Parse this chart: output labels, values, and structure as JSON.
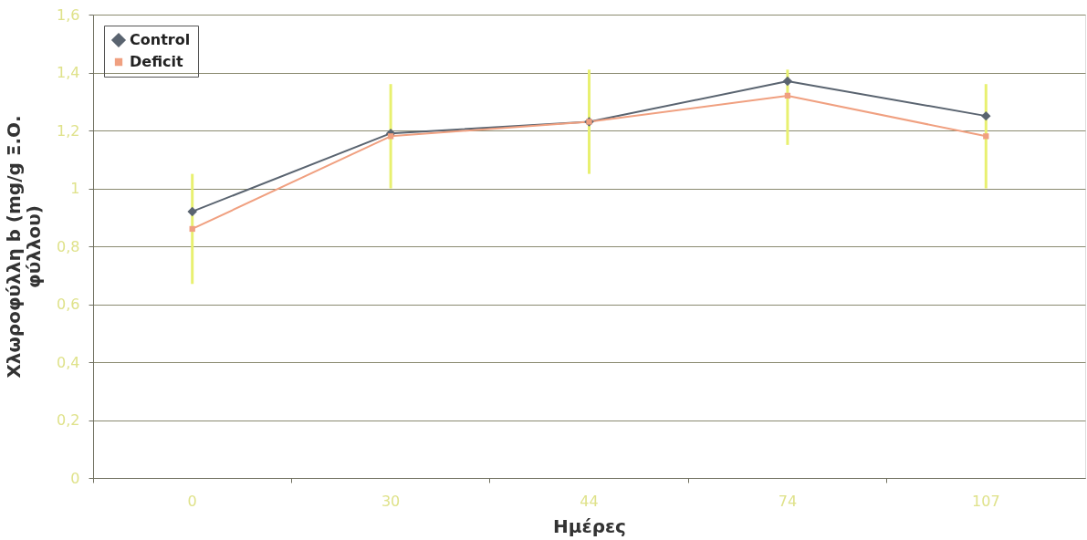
{
  "chart_data": {
    "type": "line",
    "xlabel": "Ημέρες",
    "ylabel": "Χλωροφύλλη b (mg/g Ξ.Ο. φύλλου)",
    "categories": [
      "0",
      "30",
      "44",
      "74",
      "107"
    ],
    "series": [
      {
        "name": "Control",
        "color": "#5a6470",
        "marker": "diamond",
        "values": [
          0.92,
          1.19,
          1.23,
          1.37,
          1.25
        ]
      },
      {
        "name": "Deficit",
        "color": "#f0a080",
        "marker": "square",
        "values": [
          0.86,
          1.18,
          1.23,
          1.32,
          1.18
        ],
        "errors": [
          [
            0.67,
            1.05
          ],
          [
            1.0,
            1.36
          ],
          [
            1.05,
            1.41
          ],
          [
            1.15,
            1.41
          ],
          [
            1.0,
            1.36
          ]
        ]
      }
    ],
    "ylim": [
      0,
      1.6
    ],
    "yticks": [
      0,
      {
        "value": 0.2,
        "label": "0,2"
      },
      {
        "value": 0.4,
        "label": "0,4"
      },
      {
        "value": 0.6,
        "label": "0,6"
      },
      {
        "value": 0.8,
        "label": "0,8"
      },
      1,
      {
        "value": 1.2,
        "label": "1,2"
      },
      {
        "value": 1.4,
        "label": "1,4"
      },
      {
        "value": 1.6,
        "label": "1,6"
      }
    ],
    "grid": "y",
    "legend": "top left"
  }
}
